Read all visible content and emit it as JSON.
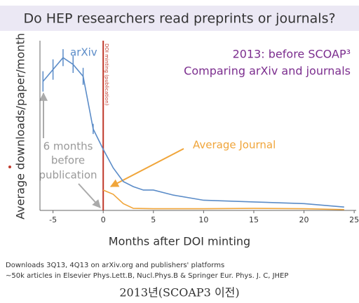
{
  "chart_data": {
    "type": "line",
    "title": "Do HEP researchers read preprints or journals?",
    "ylabel": "Average downloads/paper/month",
    "xlabel": "Months after DOI minting",
    "xlim": [
      -6.3,
      25.2
    ],
    "xticks": [
      -5,
      0,
      5,
      10,
      15,
      20,
      25
    ],
    "ylim": [
      0,
      10
    ],
    "series": [
      {
        "name": "arXiv",
        "color": "#5b8cc8",
        "x": [
          -6,
          -5,
          -4,
          -3,
          -2,
          -1,
          0,
          1,
          2,
          3,
          4,
          5,
          7,
          10,
          15,
          20,
          24
        ],
        "values": [
          7.6,
          8.3,
          9.0,
          8.6,
          7.9,
          4.8,
          3.6,
          2.5,
          1.7,
          1.4,
          1.2,
          1.2,
          0.9,
          0.6,
          0.5,
          0.4,
          0.2
        ],
        "errors": [
          0.6,
          0.6,
          0.5,
          0.5,
          0.5,
          0.3,
          null,
          null,
          null,
          null,
          null,
          null,
          null,
          null,
          null,
          null,
          null
        ]
      },
      {
        "name": "Average Journal",
        "color": "#f0a53a",
        "x": [
          0,
          1,
          2,
          3,
          5,
          10,
          15,
          20,
          24
        ],
        "values": [
          1.2,
          0.95,
          0.4,
          0.12,
          0.1,
          0.1,
          0.12,
          0.1,
          0.05
        ]
      }
    ],
    "annotations": {
      "scoap": "2013: before SCOAP³",
      "compare": "Comparing arXiv and journals",
      "doi": "DOI minting (publication)",
      "months": [
        "6 months",
        "before",
        "publication"
      ]
    },
    "footer": [
      "Downloads 3Q13, 4Q13 on arXiv.org and publishers' platforms",
      "~50k articles in Elsevier Phys.Lett.B, Nucl.Phys.B & Springer Eur. Phys. J. C, JHEP"
    ],
    "caption": "2013년(SCOAP3 이전)"
  }
}
